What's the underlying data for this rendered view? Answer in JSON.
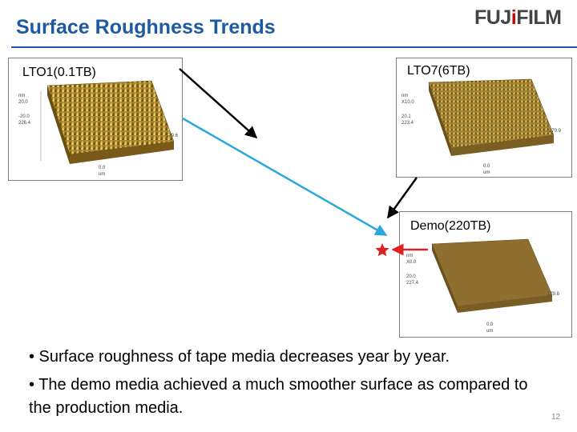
{
  "header": {
    "title": "Surface Roughness Trends",
    "logo_text": "FUJIFILM",
    "logo_text_left": "FUJ",
    "logo_dot": "i",
    "logo_text_right": "FILM",
    "title_color": "#1e5aa0",
    "logo_accent": "#cc0000"
  },
  "panels": {
    "lto1": {
      "label": "LTO1(0.1TB)",
      "surface_color": "#a8842a"
    },
    "lto7": {
      "label": "LTO7(6TB)",
      "surface_color": "#9e8030"
    },
    "demo": {
      "label": "Demo(220TB)",
      "surface_color": "#8f6f30"
    }
  },
  "axis_text": {
    "lto1": {
      "unit": "nm",
      "z1": "20.0",
      "z2": "-20.0",
      "z3": "226.4",
      "right": "179.6",
      "bottom": "0.0",
      "bottom_unit": "um"
    },
    "lto7": {
      "unit": "nm",
      "z1": "X10.0",
      "z2": "20.1",
      "z3": "223.4",
      "right": "179.9",
      "bottom": "0.0",
      "bottom_unit": "um"
    },
    "demo": {
      "unit": "nm",
      "z1": "X0.0",
      "z2": "20.0",
      "z3": "227.4",
      "right": "179.6",
      "bottom": "0.0",
      "bottom_unit": "um"
    }
  },
  "bullets": [
    "• Surface roughness of tape media decreases year by year.",
    "• The demo media achieved a much smoother surface as compared to the production media."
  ],
  "page_number": "12",
  "colors": {
    "arrow_black": "#000000",
    "arrow_blue": "#2aa7dc",
    "arrow_red": "#e02020",
    "star": "#e02020"
  }
}
